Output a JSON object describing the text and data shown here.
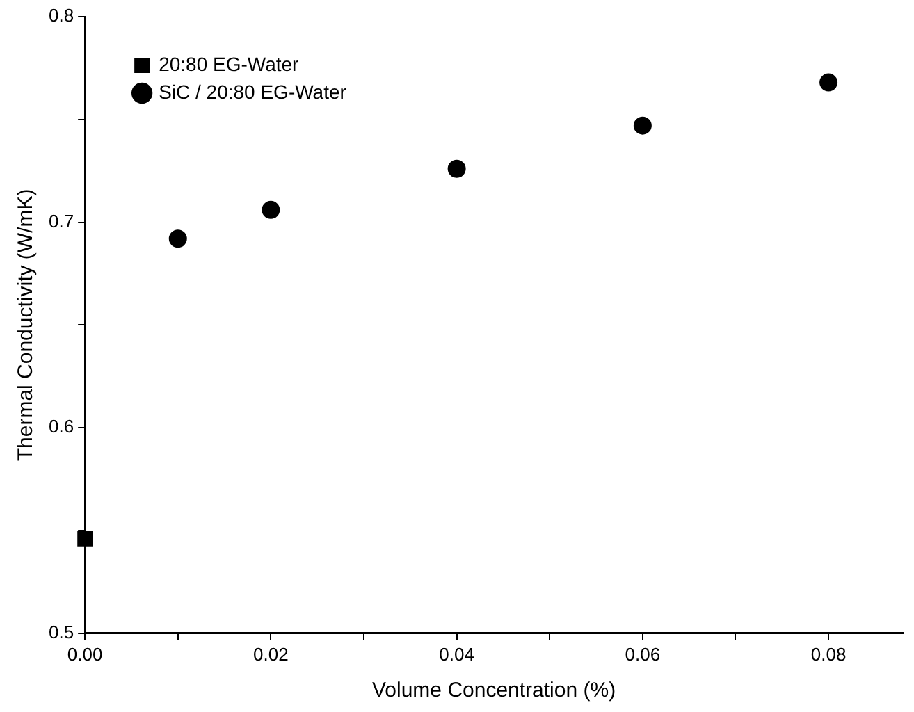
{
  "chart_data": {
    "type": "scatter",
    "xlabel": "Volume Concentration (%)",
    "ylabel": "Thermal Conductivity (W/mK)",
    "xlim": [
      0,
      0.088
    ],
    "xticks": [
      {
        "value": 0,
        "label": "0.00"
      },
      {
        "value": 0.02,
        "label": "0.02"
      },
      {
        "value": 0.04,
        "label": "0.04"
      },
      {
        "value": 0.06,
        "label": "0.06"
      },
      {
        "value": 0.08,
        "label": "0.08"
      }
    ],
    "ylim": [
      0.5,
      0.8
    ],
    "yticks": [
      0.5,
      0.6,
      0.7,
      0.8
    ],
    "grid": false,
    "legend": "top left",
    "series": [
      {
        "name": "20:80 EG-Water",
        "color": "#000000",
        "marker": "square",
        "x": [
          0
        ],
        "values": [
          0.546
        ]
      },
      {
        "name": "SiC / 20:80 EG-Water",
        "color": "#000000",
        "marker": "circle",
        "x": [
          0.01,
          0.02,
          0.04,
          0.06,
          0.08
        ],
        "values": [
          0.692,
          0.706,
          0.726,
          0.747,
          0.768
        ]
      }
    ]
  }
}
